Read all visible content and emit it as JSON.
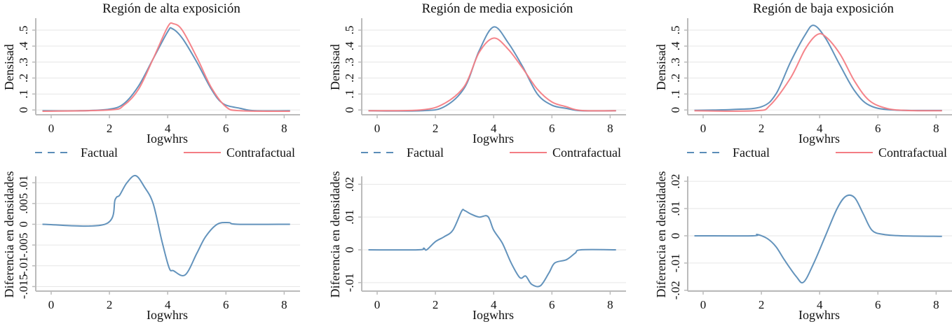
{
  "chart_data": [
    {
      "type": "line",
      "title": "Región de alta exposición",
      "xlabel": "Iogwhrs",
      "ylabel": "Densisad",
      "xlim": [
        -0.3,
        8.2
      ],
      "xticks": [
        0,
        2,
        4,
        6,
        8
      ],
      "xtick_labels": [
        "0",
        "2",
        "4",
        "6",
        "8"
      ],
      "ylim": [
        -0.03,
        0.566
      ],
      "yticks": [
        0,
        0.1,
        0.2,
        0.3,
        0.4,
        0.5
      ],
      "ytick_labels": [
        "0",
        ".1",
        ".2",
        ".3",
        ".4",
        ".5"
      ],
      "grid": true,
      "series": [
        {
          "name": "Factual",
          "color": "#5b8db8",
          "points": [
            [
              -0.3,
              -0.005
            ],
            [
              1,
              -0.005
            ],
            [
              2,
              0.005
            ],
            [
              2.5,
              0.04
            ],
            [
              3,
              0.15
            ],
            [
              3.5,
              0.32
            ],
            [
              4,
              0.49
            ],
            [
              4.15,
              0.51
            ],
            [
              4.5,
              0.45
            ],
            [
              5,
              0.3
            ],
            [
              5.5,
              0.13
            ],
            [
              5.9,
              0.04
            ],
            [
              6.5,
              0.01
            ],
            [
              7,
              -0.005
            ],
            [
              8.2,
              -0.005
            ]
          ]
        },
        {
          "name": "Contrafactual",
          "color": "#f47d84",
          "points": [
            [
              -0.3,
              -0.008
            ],
            [
              2,
              0
            ],
            [
              2.5,
              0.03
            ],
            [
              3,
              0.13
            ],
            [
              3.5,
              0.32
            ],
            [
              4,
              0.52
            ],
            [
              4.2,
              0.54
            ],
            [
              4.5,
              0.5
            ],
            [
              5,
              0.33
            ],
            [
              5.5,
              0.14
            ],
            [
              6,
              0.02
            ],
            [
              6.5,
              -0.005
            ],
            [
              8.2,
              -0.008
            ]
          ]
        }
      ],
      "legend": {
        "placement": "bottom",
        "items": [
          "Factual",
          "Contrafactual"
        ]
      }
    },
    {
      "type": "line",
      "title": "Región de media exposición",
      "xlabel": "Iogwhrs",
      "ylabel": "Densisad",
      "xlim": [
        -0.3,
        8.2
      ],
      "xticks": [
        0,
        2,
        4,
        6,
        8
      ],
      "xtick_labels": [
        "0",
        "2",
        "4",
        "6",
        "8"
      ],
      "ylim": [
        -0.03,
        0.566
      ],
      "yticks": [
        0,
        0.1,
        0.2,
        0.3,
        0.4,
        0.5
      ],
      "ytick_labels": [
        "0",
        ".1",
        ".2",
        ".3",
        ".4",
        ".5"
      ],
      "grid": true,
      "series": [
        {
          "name": "Factual",
          "color": "#5b8db8",
          "points": [
            [
              -0.3,
              -0.005
            ],
            [
              1.5,
              -0.005
            ],
            [
              2.3,
              0.02
            ],
            [
              3,
              0.14
            ],
            [
              3.5,
              0.37
            ],
            [
              4,
              0.52
            ],
            [
              4.5,
              0.42
            ],
            [
              5,
              0.27
            ],
            [
              5.5,
              0.1
            ],
            [
              6,
              0.03
            ],
            [
              6.5,
              0.01
            ],
            [
              7,
              -0.005
            ],
            [
              8.2,
              -0.005
            ]
          ]
        },
        {
          "name": "Contrafactual",
          "color": "#f47d84",
          "points": [
            [
              -0.3,
              -0.005
            ],
            [
              1.5,
              0
            ],
            [
              2.3,
              0.04
            ],
            [
              3,
              0.15
            ],
            [
              3.5,
              0.36
            ],
            [
              4,
              0.45
            ],
            [
              4.5,
              0.38
            ],
            [
              5,
              0.26
            ],
            [
              5.5,
              0.13
            ],
            [
              6,
              0.05
            ],
            [
              6.5,
              0.02
            ],
            [
              7,
              -0.003
            ],
            [
              8.2,
              -0.005
            ]
          ]
        }
      ],
      "legend": {
        "placement": "bottom",
        "items": [
          "Factual",
          "Contrafactual"
        ]
      }
    },
    {
      "type": "line",
      "title": "Región de baja exposición",
      "xlabel": "Iogwhrs",
      "ylabel": "Densisad",
      "xlim": [
        -0.3,
        8.2
      ],
      "xticks": [
        0,
        2,
        4,
        6,
        8
      ],
      "xtick_labels": [
        "0",
        "2",
        "4",
        "6",
        "8"
      ],
      "ylim": [
        -0.03,
        0.566
      ],
      "yticks": [
        0,
        0.1,
        0.2,
        0.3,
        0.4,
        0.5
      ],
      "ytick_labels": [
        "0",
        ".1",
        ".2",
        ".3",
        ".4",
        ".5"
      ],
      "grid": true,
      "series": [
        {
          "name": "Factual",
          "color": "#5b8db8",
          "points": [
            [
              -0.3,
              -0.002
            ],
            [
              1,
              0.003
            ],
            [
              2,
              0.02
            ],
            [
              2.5,
              0.1
            ],
            [
              3,
              0.3
            ],
            [
              3.5,
              0.47
            ],
            [
              3.8,
              0.53
            ],
            [
              4.2,
              0.45
            ],
            [
              4.7,
              0.28
            ],
            [
              5.2,
              0.12
            ],
            [
              5.7,
              0.03
            ],
            [
              6.5,
              0
            ],
            [
              8.2,
              -0.003
            ]
          ]
        },
        {
          "name": "Contrafactual",
          "color": "#f47d84",
          "points": [
            [
              -0.3,
              -0.005
            ],
            [
              1.8,
              -0.005
            ],
            [
              2.3,
              0.03
            ],
            [
              3,
              0.2
            ],
            [
              3.5,
              0.38
            ],
            [
              3.9,
              0.47
            ],
            [
              4.2,
              0.46
            ],
            [
              4.7,
              0.35
            ],
            [
              5.2,
              0.18
            ],
            [
              5.7,
              0.06
            ],
            [
              6.3,
              0.01
            ],
            [
              7,
              -0.003
            ],
            [
              8.2,
              -0.005
            ]
          ]
        }
      ],
      "legend": {
        "placement": "bottom",
        "items": [
          "Factual",
          "Contrafactual"
        ]
      }
    },
    {
      "type": "line",
      "title": "",
      "xlabel": "Iogwhrs",
      "ylabel": "Diferencia en densidades",
      "xlim": [
        -0.3,
        8.2
      ],
      "xticks": [
        0,
        2,
        4,
        6,
        8
      ],
      "xtick_labels": [
        "0",
        "2",
        "4",
        "6",
        "8"
      ],
      "ylim": [
        -0.0161,
        0.0112
      ],
      "yticks": [
        -0.015,
        -0.01,
        -0.005,
        0,
        0.005,
        0.01
      ],
      "ytick_labels": [
        "-.015",
        "-.01",
        "-.005",
        "0",
        ".005",
        ".01"
      ],
      "grid": true,
      "series": [
        {
          "name": "Diferencia",
          "color": "#5b8db8",
          "points": [
            [
              -0.3,
              0
            ],
            [
              1.85,
              0
            ],
            [
              2.2,
              0.006
            ],
            [
              2.35,
              0.007
            ],
            [
              2.6,
              0.01
            ],
            [
              2.9,
              0.0117
            ],
            [
              3.2,
              0.009
            ],
            [
              3.5,
              0.005
            ],
            [
              3.8,
              -0.004
            ],
            [
              4.05,
              -0.0105
            ],
            [
              4.2,
              -0.0112
            ],
            [
              4.6,
              -0.0122
            ],
            [
              5,
              -0.007
            ],
            [
              5.3,
              -0.003
            ],
            [
              5.7,
              0
            ],
            [
              6.1,
              0.0004
            ],
            [
              6.4,
              0
            ],
            [
              8.2,
              0
            ]
          ]
        }
      ]
    },
    {
      "type": "line",
      "title": "",
      "xlabel": "Iogwhrs",
      "ylabel": "Diferencia en densidades",
      "xlim": [
        -0.3,
        8.2
      ],
      "xticks": [
        0,
        2,
        4,
        6,
        8
      ],
      "xtick_labels": [
        "0",
        "2",
        "4",
        "6",
        "8"
      ],
      "ylim": [
        -0.0126,
        0.022
      ],
      "yticks": [
        -0.01,
        0,
        0.01,
        0.02
      ],
      "ytick_labels": [
        "-.01",
        "0",
        ".01",
        ".02"
      ],
      "grid": true,
      "series": [
        {
          "name": "Diferencia",
          "color": "#5b8db8",
          "points": [
            [
              -0.3,
              0
            ],
            [
              1.4,
              0
            ],
            [
              1.6,
              0.0005
            ],
            [
              1.7,
              0
            ],
            [
              2,
              0.0025
            ],
            [
              2.3,
              0.004
            ],
            [
              2.6,
              0.006
            ],
            [
              2.9,
              0.0118
            ],
            [
              3.0,
              0.012
            ],
            [
              3.2,
              0.011
            ],
            [
              3.5,
              0.01
            ],
            [
              3.8,
              0.0102
            ],
            [
              4,
              0.006
            ],
            [
              4.3,
              0.002
            ],
            [
              4.6,
              -0.004
            ],
            [
              4.9,
              -0.0085
            ],
            [
              5.1,
              -0.008
            ],
            [
              5.3,
              -0.0105
            ],
            [
              5.6,
              -0.011
            ],
            [
              5.9,
              -0.007
            ],
            [
              6.1,
              -0.004
            ],
            [
              6.5,
              -0.003
            ],
            [
              6.8,
              -0.001
            ],
            [
              7,
              0
            ],
            [
              8.2,
              0
            ]
          ]
        }
      ]
    },
    {
      "type": "line",
      "title": "",
      "xlabel": "Iogwhrs",
      "ylabel": "Diferencia en densidades",
      "xlim": [
        -0.3,
        8.2
      ],
      "xticks": [
        0,
        2,
        4,
        6,
        8
      ],
      "xtick_labels": [
        "0",
        "2",
        "4",
        "6",
        "8"
      ],
      "ylim": [
        -0.0203,
        0.0213
      ],
      "yticks": [
        -0.02,
        -0.01,
        0,
        0.01,
        0.02
      ],
      "ytick_labels": [
        "-.02",
        "-.01",
        "0",
        ".01",
        ".02"
      ],
      "grid": true,
      "series": [
        {
          "name": "Diferencia",
          "color": "#5b8db8",
          "points": [
            [
              -0.3,
              0
            ],
            [
              1.7,
              0
            ],
            [
              1.85,
              0.0005
            ],
            [
              2.2,
              -0.001
            ],
            [
              2.5,
              -0.004
            ],
            [
              2.8,
              -0.009
            ],
            [
              3.2,
              -0.015
            ],
            [
              3.45,
              -0.017
            ],
            [
              3.8,
              -0.01
            ],
            [
              4.2,
              0
            ],
            [
              4.6,
              0.01
            ],
            [
              4.9,
              0.0145
            ],
            [
              5.2,
              0.014
            ],
            [
              5.5,
              0.008
            ],
            [
              5.8,
              0.002
            ],
            [
              6.2,
              0.0005
            ],
            [
              6.8,
              0
            ],
            [
              8.2,
              -0.0002
            ]
          ]
        }
      ]
    }
  ]
}
